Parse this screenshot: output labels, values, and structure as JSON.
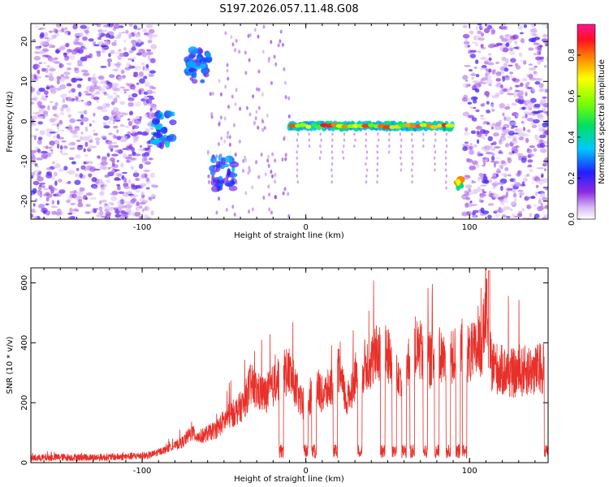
{
  "chart_data": [
    {
      "type": "heatmap",
      "title": "S197.2026.057.11.48.G08",
      "xlabel": "Height of straight line (km)",
      "ylabel": "Frequency (Hz)",
      "xlim": [
        -168,
        148
      ],
      "ylim": [
        -24.5,
        24.5
      ],
      "x_ticks": [
        -100,
        0,
        100
      ],
      "x_tick_labels": [
        "-100",
        "0",
        "100"
      ],
      "y_ticks": [
        -20,
        -10,
        0,
        10,
        20
      ],
      "y_tick_labels": [
        "-20",
        "-10",
        "0",
        "10",
        "20"
      ],
      "colorbar": {
        "label": "Normalized spectral amplitude",
        "range": [
          0.0,
          0.95
        ],
        "ticks": [
          0.0,
          0.2,
          0.4,
          0.6,
          0.8
        ],
        "tick_labels": [
          "0.0",
          "0.2",
          "0.4",
          "0.6",
          "0.8"
        ]
      },
      "features": [
        {
          "name": "noise-left",
          "x_range": [
            -168,
            -92
          ],
          "y_range": [
            -24.5,
            24.5
          ],
          "amplitude": 0.15
        },
        {
          "name": "cluster-a",
          "x_center": -88,
          "y_center": -2,
          "amplitude": 0.35
        },
        {
          "name": "cluster-b",
          "x_center": -66,
          "y_center": 14,
          "amplitude": 0.3
        },
        {
          "name": "cluster-c",
          "x_center": -50,
          "y_center": -13,
          "amplitude": 0.3
        },
        {
          "name": "tone-line",
          "x_range": [
            -10,
            90
          ],
          "y_center": -1.2,
          "amplitude": 0.9
        },
        {
          "name": "burst-right",
          "x_center": 94,
          "y_center": -15.5,
          "amplitude": 0.8
        },
        {
          "name": "noise-right",
          "x_range": [
            97,
            148
          ],
          "y_range": [
            -24.5,
            24.5
          ],
          "amplitude": 0.15
        }
      ]
    },
    {
      "type": "line",
      "xlabel": "Height of straight line (km)",
      "ylabel": "SNR (10 * v/v)",
      "xlim": [
        -168,
        148
      ],
      "ylim": [
        0,
        650
      ],
      "x_ticks": [
        -100,
        0,
        100
      ],
      "x_tick_labels": [
        "-100",
        "0",
        "100"
      ],
      "y_ticks": [
        0,
        200,
        400,
        600
      ],
      "y_tick_labels": [
        "0",
        "200",
        "400",
        "600"
      ],
      "series": [
        {
          "name": "SNR",
          "color": "#e8302a",
          "x": [
            -168,
            -150,
            -130,
            -110,
            -95,
            -85,
            -75,
            -70,
            -65,
            -55,
            -48,
            -42,
            -38,
            -34,
            -30,
            -25,
            -20,
            -15,
            -10,
            -5,
            0,
            5,
            10,
            15,
            20,
            25,
            30,
            35,
            40,
            45,
            50,
            55,
            60,
            65,
            70,
            75,
            80,
            85,
            90,
            95,
            100,
            105,
            108,
            110,
            113,
            118,
            125,
            130,
            135,
            140,
            145,
            148
          ],
          "values": [
            15,
            18,
            17,
            20,
            25,
            45,
            70,
            100,
            85,
            110,
            150,
            175,
            195,
            260,
            240,
            225,
            255,
            300,
            305,
            230,
            160,
            275,
            225,
            250,
            300,
            200,
            285,
            320,
            335,
            375,
            355,
            340,
            250,
            390,
            370,
            340,
            360,
            340,
            350,
            385,
            360,
            375,
            400,
            520,
            330,
            310,
            300,
            295,
            310,
            305,
            320,
            340
          ]
        }
      ],
      "dips_x": [
        -15,
        0,
        5,
        18,
        33,
        47,
        54,
        60,
        65,
        73,
        80,
        87,
        93,
        97,
        147
      ]
    }
  ]
}
